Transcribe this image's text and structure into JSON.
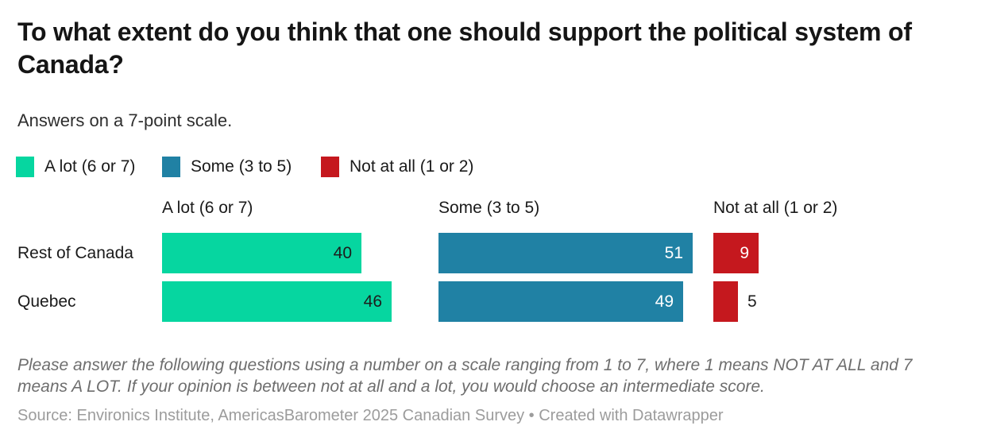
{
  "header": {
    "title": "To what extent do you think that one should support the political system of Canada?",
    "subtitle": "Answers on a 7-point scale."
  },
  "legend": {
    "position": "top",
    "items": [
      {
        "label": "A lot (6 or 7)",
        "color": "#06d6a0"
      },
      {
        "label": "Some (3 to 5)",
        "color": "#2081a4"
      },
      {
        "label": "Not at all (1 or 2)",
        "color": "#c5181e"
      }
    ]
  },
  "chart_data": {
    "type": "bar",
    "orientation": "horizontal",
    "title": "To what extent do you think that one should support the political system of Canada?",
    "subtitle": "Answers on a 7-point scale.",
    "categories": [
      "Rest of Canada",
      "Quebec"
    ],
    "series": [
      {
        "name": "A lot (6 or 7)",
        "color": "#06d6a0",
        "values": [
          40,
          46
        ],
        "value_label_color": "#1d1d1d"
      },
      {
        "name": "Some (3 to 5)",
        "color": "#2081a4",
        "values": [
          51,
          49
        ],
        "value_label_color": "#ffffff"
      },
      {
        "name": "Not at all (1 or 2)",
        "color": "#c5181e",
        "values": [
          9,
          5
        ],
        "value_label_color": "#ffffff"
      }
    ],
    "unit": "percent",
    "value_range": [
      0,
      55
    ],
    "grid": false,
    "legend_position": "top",
    "value_labels": "shown"
  },
  "notes": {
    "footnote": "Please answer the following questions using a number on a scale ranging from 1 to 7, where 1 means NOT AT ALL and 7 means A LOT. If your opinion is between not at all and a lot, you would choose an intermediate score.",
    "source": "Source: Environics Institute, AmericasBarometer 2025 Canadian Survey • Created with Datawrapper"
  }
}
